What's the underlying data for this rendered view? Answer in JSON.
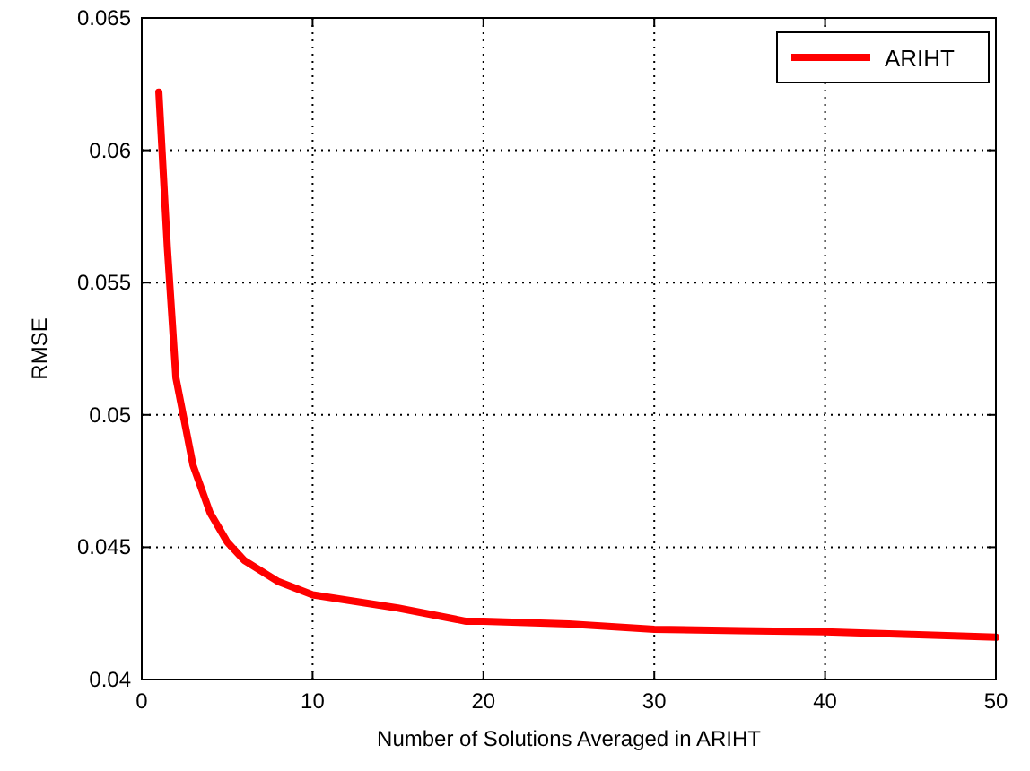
{
  "chart_data": {
    "type": "line",
    "xlabel": "Number of Solutions Averaged in ARIHT",
    "ylabel": "RMSE",
    "xlim": [
      0,
      50
    ],
    "ylim": [
      0.04,
      0.065
    ],
    "xticks": [
      0,
      10,
      20,
      30,
      40,
      50
    ],
    "yticks": [
      0.04,
      0.045,
      0.05,
      0.055,
      0.06,
      0.065
    ],
    "grid": true,
    "legend": "top right",
    "line_style": "solid",
    "marker": "none",
    "series": [
      {
        "name": "ARIHT",
        "color": "#ff0000",
        "x": [
          1,
          1.5,
          2,
          3,
          4,
          5,
          6,
          8,
          10,
          15,
          19,
          20,
          25,
          30,
          35,
          40,
          45,
          50
        ],
        "values": [
          0.0622,
          0.0563,
          0.0514,
          0.0481,
          0.0463,
          0.0452,
          0.0445,
          0.0437,
          0.0432,
          0.0427,
          0.0422,
          0.0422,
          0.0421,
          0.0419,
          0.04185,
          0.0418,
          0.0417,
          0.0416
        ]
      }
    ]
  }
}
